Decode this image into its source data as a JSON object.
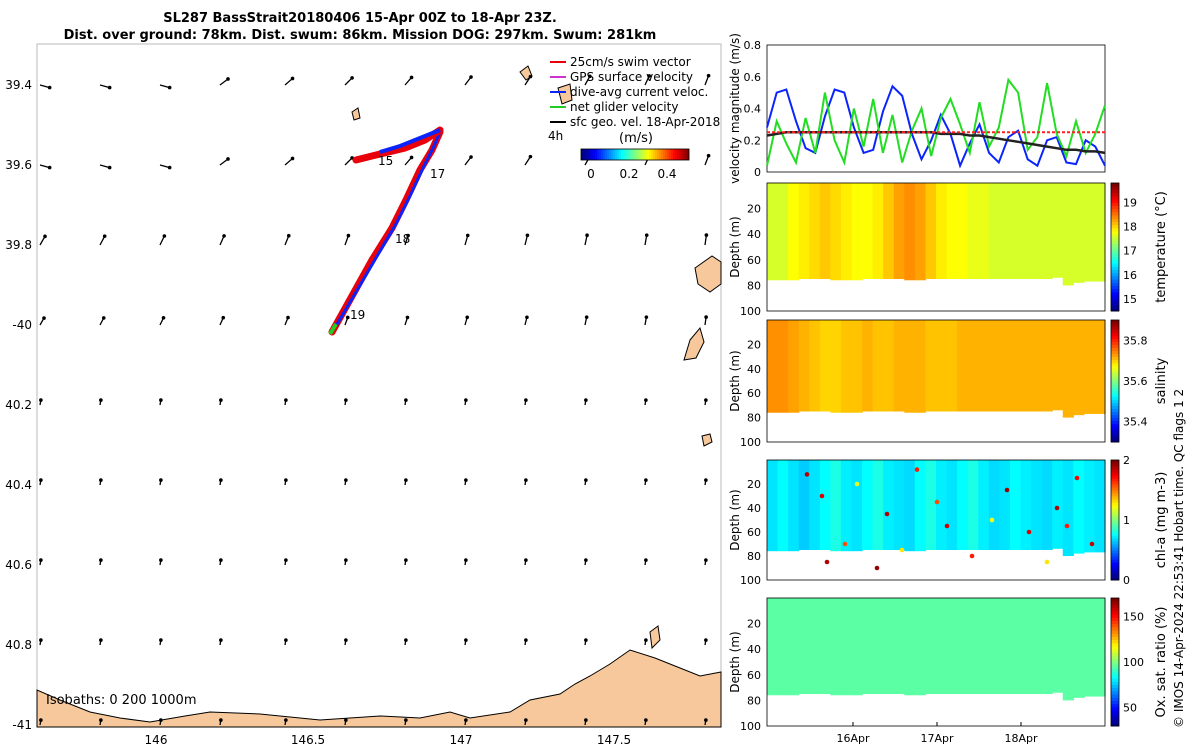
{
  "title": {
    "line1": "SL287 BassStrait20180406 15-Apr 00Z to 18-Apr 23Z.",
    "line2": "Dist. over ground: 78km. Dist. swum: 86km. Mission DOG: 297km. Swum: 281km"
  },
  "map": {
    "lat_ticks": [
      "39.4",
      "39.6",
      "39.8",
      "-40",
      "40.2",
      "40.4",
      "40.6",
      "40.8",
      "-41"
    ],
    "lon_ticks": [
      "146",
      "146.5",
      "147",
      "147.5"
    ],
    "legend": [
      {
        "label": "25cm/s swim vector",
        "color": "#e8000b"
      },
      {
        "label": "GPS surface velocity",
        "color": "#cc33cc"
      },
      {
        "label": "dive-avg current veloc.",
        "color": "#0b24fb"
      },
      {
        "label": "net glider velocity",
        "color": "#22cc22"
      },
      {
        "label": "sfc geo. vel. 18-Apr-2018",
        "color": "#000000"
      }
    ],
    "legend_extra": "4h",
    "colorbar_label": "(m/s)",
    "colorbar_ticks": [
      "0",
      "0.2",
      "0.4"
    ],
    "track_labels": [
      "15",
      "17",
      "18",
      "19"
    ],
    "isobaths_label": "Isobaths: 0   200  1000m",
    "land_color": "#f7c89b"
  },
  "chart_data": [
    {
      "type": "line",
      "ylabel": "velocity magnitude (m/s)",
      "ylim": [
        0,
        0.8
      ],
      "yticks": [
        "0",
        "0.2",
        "0.4",
        "0.6",
        "0.8"
      ],
      "series": [
        {
          "color": "#0b24fb",
          "values": [
            0.28,
            0.5,
            0.52,
            0.32,
            0.15,
            0.12,
            0.35,
            0.52,
            0.5,
            0.28,
            0.12,
            0.14,
            0.38,
            0.54,
            0.48,
            0.24,
            0.08,
            0.2,
            0.36,
            0.24,
            0.04,
            0.18,
            0.3,
            0.12,
            0.06,
            0.22,
            0.26,
            0.08,
            0.04,
            0.2,
            0.22,
            0.06,
            0.05,
            0.2,
            0.16,
            0.04
          ]
        },
        {
          "color": "#22dd22",
          "values": [
            0.04,
            0.32,
            0.18,
            0.06,
            0.34,
            0.12,
            0.5,
            0.2,
            0.06,
            0.4,
            0.16,
            0.46,
            0.12,
            0.36,
            0.06,
            0.26,
            0.4,
            0.1,
            0.34,
            0.46,
            0.3,
            0.12,
            0.44,
            0.16,
            0.28,
            0.58,
            0.5,
            0.14,
            0.22,
            0.56,
            0.24,
            0.1,
            0.32,
            0.12,
            0.24,
            0.42
          ]
        },
        {
          "color": "#222222",
          "values": [
            0.23,
            0.24,
            0.25,
            0.25,
            0.25,
            0.25,
            0.25,
            0.25,
            0.25,
            0.25,
            0.25,
            0.25,
            0.25,
            0.25,
            0.25,
            0.25,
            0.25,
            0.25,
            0.24,
            0.24,
            0.24,
            0.23,
            0.23,
            0.22,
            0.21,
            0.2,
            0.19,
            0.18,
            0.17,
            0.16,
            0.15,
            0.14,
            0.14,
            0.13,
            0.13,
            0.12
          ]
        },
        {
          "color": "#ff2020",
          "values": [
            0.25,
            0.25,
            0.25,
            0.25,
            0.25,
            0.25,
            0.25,
            0.25,
            0.25,
            0.25,
            0.25,
            0.25,
            0.25,
            0.25,
            0.25,
            0.25,
            0.25,
            0.25,
            0.25,
            0.25,
            0.25,
            0.25,
            0.25,
            0.25,
            0.25,
            0.25,
            0.25,
            0.25,
            0.25,
            0.25,
            0.25,
            0.25,
            0.25,
            0.25,
            0.25,
            0.25
          ]
        }
      ]
    },
    {
      "type": "heatmap",
      "ylabel": "Depth (m)",
      "yticks": [
        "20",
        "40",
        "60",
        "80",
        "100"
      ],
      "ylim": [
        0,
        100
      ],
      "cbar_label": "temperature (°C)",
      "cbar_ticks": [
        "15",
        "16",
        "17",
        "18",
        "19"
      ],
      "cbar_range": [
        14.5,
        19.8
      ],
      "colormap": "jet",
      "columns": [
        17.6,
        17.6,
        17.8,
        17.9,
        18.0,
        18.1,
        18.0,
        17.9,
        17.8,
        17.8,
        17.9,
        18.1,
        18.3,
        18.4,
        18.3,
        18.1,
        17.9,
        17.8,
        17.8,
        17.7,
        17.7,
        17.6,
        17.6,
        17.6,
        17.6,
        17.6,
        17.6,
        17.6,
        17.6,
        17.6,
        17.6,
        17.6
      ]
    },
    {
      "type": "heatmap",
      "ylabel": "Depth (m)",
      "yticks": [
        "20",
        "40",
        "60",
        "80",
        "100"
      ],
      "ylim": [
        0,
        100
      ],
      "cbar_label": "salinity",
      "cbar_ticks": [
        "35.4",
        "35.6",
        "35.8"
      ],
      "cbar_range": [
        35.3,
        35.9
      ],
      "colormap": "jet",
      "columns": [
        35.74,
        35.74,
        35.73,
        35.72,
        35.71,
        35.7,
        35.7,
        35.71,
        35.71,
        35.72,
        35.71,
        35.71,
        35.72,
        35.72,
        35.72,
        35.71,
        35.71,
        35.71,
        35.72,
        35.72,
        35.72,
        35.72,
        35.72,
        35.72,
        35.72,
        35.72,
        35.72,
        35.72,
        35.72,
        35.72,
        35.72,
        35.72
      ]
    },
    {
      "type": "heatmap",
      "ylabel": "Depth (m)",
      "yticks": [
        "20",
        "40",
        "60",
        "80",
        "100"
      ],
      "ylim": [
        0,
        100
      ],
      "cbar_label": "chl-a (mg m-3)",
      "cbar_ticks": [
        "0",
        "1",
        "2"
      ],
      "cbar_range": [
        0,
        2
      ],
      "colormap": "jet",
      "columns": [
        0.7,
        0.75,
        0.7,
        0.65,
        0.7,
        0.75,
        0.8,
        0.72,
        0.7,
        0.75,
        0.8,
        0.72,
        0.7,
        0.68,
        0.75,
        0.8,
        0.72,
        0.7,
        0.75,
        0.8,
        0.72,
        0.68,
        0.7,
        0.75,
        0.72,
        0.7,
        0.68,
        0.72,
        0.7,
        0.75,
        0.72,
        0.7
      ]
    },
    {
      "type": "heatmap",
      "ylabel": "Depth (m)",
      "yticks": [
        "20",
        "40",
        "60",
        "80",
        "100"
      ],
      "ylim": [
        0,
        100
      ],
      "cbar_label": "Ox. sat. ratio (%)",
      "cbar_ticks": [
        "50",
        "100",
        "150"
      ],
      "cbar_range": [
        30,
        170
      ],
      "colormap": "jet",
      "columns": [
        95,
        95,
        95,
        95,
        95,
        95,
        95,
        95,
        95,
        95,
        95,
        95,
        95,
        95,
        95,
        95,
        95,
        95,
        95,
        95,
        95,
        95,
        95,
        95,
        95,
        95,
        95,
        95,
        95,
        95,
        95,
        95
      ],
      "xticks": [
        "16Apr",
        "17Apr",
        "18Apr"
      ]
    }
  ],
  "side_label": {
    "qc": "Hobart time. QC flags 1  2",
    "credit": "© IMOS 14-Apr-2024 22:53:41"
  }
}
